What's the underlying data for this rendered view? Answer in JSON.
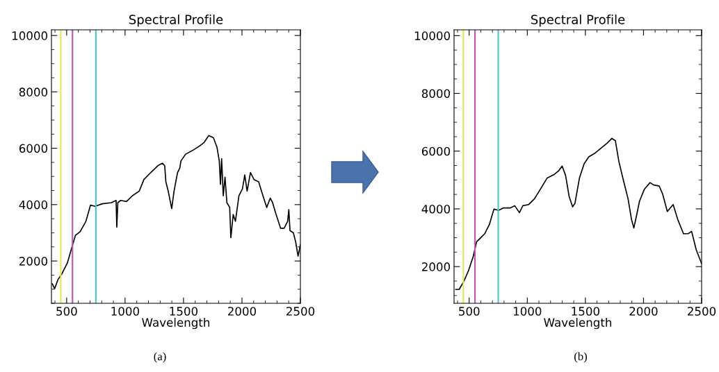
{
  "chart_data": [
    {
      "type": "line",
      "title": "Spectral Profile",
      "xlabel": "Wavelength",
      "annotations": [
        "(a)"
      ],
      "xlim": [
        370,
        2500
      ],
      "ylim": [
        500,
        10200
      ],
      "xticks": [
        500,
        1000,
        1500,
        2000,
        2500
      ],
      "yticks": [
        2000,
        4000,
        6000,
        8000,
        10000
      ],
      "grid": false,
      "legend": false,
      "ref_lines": [
        {
          "axis": "x",
          "value": 450,
          "color": "#e6e64a"
        },
        {
          "axis": "x",
          "value": 550,
          "color": "#c050c0"
        },
        {
          "axis": "x",
          "value": 750,
          "color": "#40c8d0"
        }
      ],
      "series": [
        {
          "color": "#000000",
          "x": [
            377,
            397,
            427,
            456,
            506,
            546,
            575,
            615,
            665,
            704,
            744,
            804,
            883,
            923,
            929,
            938,
            962,
            1012,
            1061,
            1121,
            1161,
            1220,
            1280,
            1319,
            1339,
            1349,
            1369,
            1399,
            1419,
            1449,
            1468,
            1478,
            1518,
            1577,
            1637,
            1677,
            1716,
            1756,
            1786,
            1806,
            1816,
            1826,
            1840,
            1855,
            1871,
            1895,
            1905,
            1925,
            1944,
            1974,
            2004,
            2024,
            2044,
            2073,
            2103,
            2143,
            2173,
            2212,
            2242,
            2262,
            2292,
            2331,
            2361,
            2391,
            2401,
            2411,
            2440,
            2460,
            2480,
            2500
          ],
          "values": [
            1190,
            1020,
            1350,
            1520,
            1930,
            2500,
            2910,
            3040,
            3410,
            3980,
            3940,
            4030,
            4070,
            4150,
            3200,
            4070,
            4150,
            4110,
            4310,
            4480,
            4890,
            5140,
            5380,
            5470,
            5380,
            4810,
            4480,
            3860,
            4480,
            5140,
            5300,
            5550,
            5790,
            5920,
            6080,
            6210,
            6450,
            6370,
            6040,
            5550,
            4720,
            5630,
            4310,
            4970,
            4070,
            3900,
            2830,
            3650,
            3410,
            4310,
            4560,
            5050,
            4480,
            5140,
            4890,
            4810,
            4400,
            3900,
            4230,
            4070,
            3650,
            3160,
            3160,
            3410,
            3820,
            3080,
            3000,
            2670,
            2170,
            2580
          ]
        }
      ]
    },
    {
      "type": "line",
      "title": "Spectral Profile",
      "xlabel": "Wavelength",
      "annotations": [
        "(b)"
      ],
      "xlim": [
        370,
        2500
      ],
      "ylim": [
        730,
        10200
      ],
      "xticks": [
        500,
        1000,
        1500,
        2000,
        2500
      ],
      "yticks": [
        2000,
        4000,
        6000,
        8000,
        10000
      ],
      "grid": false,
      "legend": false,
      "ref_lines": [
        {
          "axis": "x",
          "value": 450,
          "color": "#e6e64a"
        },
        {
          "axis": "x",
          "value": 550,
          "color": "#c050c0"
        },
        {
          "axis": "x",
          "value": 750,
          "color": "#40c8d0"
        }
      ],
      "series": [
        {
          "color": "#000000",
          "x": [
            385,
            414,
            454,
            494,
            534,
            564,
            594,
            634,
            674,
            713,
            753,
            793,
            852,
            892,
            932,
            962,
            1012,
            1062,
            1111,
            1171,
            1231,
            1270,
            1300,
            1330,
            1360,
            1390,
            1410,
            1449,
            1489,
            1529,
            1579,
            1628,
            1688,
            1728,
            1758,
            1788,
            1827,
            1867,
            1897,
            1917,
            1937,
            1966,
            2006,
            2056,
            2086,
            2135,
            2165,
            2205,
            2255,
            2295,
            2344,
            2384,
            2414,
            2454,
            2500
          ],
          "values": [
            1210,
            1210,
            1490,
            1860,
            2340,
            2860,
            2980,
            3140,
            3460,
            3990,
            3950,
            4030,
            4030,
            4110,
            3870,
            4110,
            4150,
            4350,
            4670,
            5070,
            5190,
            5320,
            5480,
            5150,
            4430,
            4070,
            4190,
            5070,
            5560,
            5800,
            5920,
            6080,
            6280,
            6440,
            6360,
            5640,
            4990,
            4350,
            3630,
            3340,
            3710,
            4270,
            4670,
            4910,
            4830,
            4790,
            4510,
            3910,
            4150,
            3630,
            3140,
            3140,
            3220,
            2580,
            2100
          ]
        }
      ]
    }
  ]
}
